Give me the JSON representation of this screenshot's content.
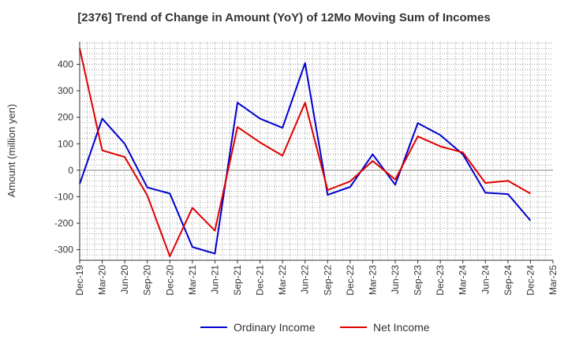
{
  "chart_data": {
    "type": "line",
    "title": "[2376]  Trend of Change in Amount (YoY) of 12Mo Moving Sum of Incomes",
    "xlabel": "",
    "ylabel": "Amount (million yen)",
    "x_ticks": [
      "Dec-19",
      "Mar-20",
      "Jun-20",
      "Sep-20",
      "Dec-20",
      "Mar-21",
      "Jun-21",
      "Sep-21",
      "Dec-21",
      "Mar-22",
      "Jun-22",
      "Sep-22",
      "Dec-22",
      "Mar-23",
      "Jun-23",
      "Sep-23",
      "Dec-23",
      "Mar-24",
      "Jun-24",
      "Sep-24",
      "Dec-24",
      "Mar-25"
    ],
    "categories": [
      "Dec-19",
      "Mar-20",
      "Jun-20",
      "Sep-20",
      "Dec-20",
      "Mar-21",
      "Jun-21",
      "Sep-21",
      "Dec-21",
      "Mar-22",
      "Jun-22",
      "Sep-22",
      "Dec-22",
      "Mar-23",
      "Jun-23",
      "Sep-23",
      "Dec-23",
      "Mar-24",
      "Jun-24",
      "Sep-24",
      "Dec-24"
    ],
    "ylim": [
      -340,
      485
    ],
    "y_ticks": [
      -300,
      -200,
      -100,
      0,
      100,
      200,
      300,
      400
    ],
    "grid": true,
    "legend_position": "bottom",
    "series": [
      {
        "name": "Ordinary Income",
        "color": "#0000cc",
        "values": [
          -52,
          195,
          100,
          -65,
          -88,
          -290,
          -315,
          255,
          195,
          160,
          405,
          -93,
          -63,
          60,
          -55,
          178,
          133,
          60,
          -85,
          -90,
          -190
        ]
      },
      {
        "name": "Net Income",
        "color": "#e00000",
        "values": [
          460,
          75,
          50,
          -95,
          -325,
          -142,
          -228,
          163,
          105,
          55,
          255,
          -75,
          -42,
          35,
          -35,
          128,
          90,
          67,
          -48,
          -40,
          -88
        ]
      }
    ]
  }
}
